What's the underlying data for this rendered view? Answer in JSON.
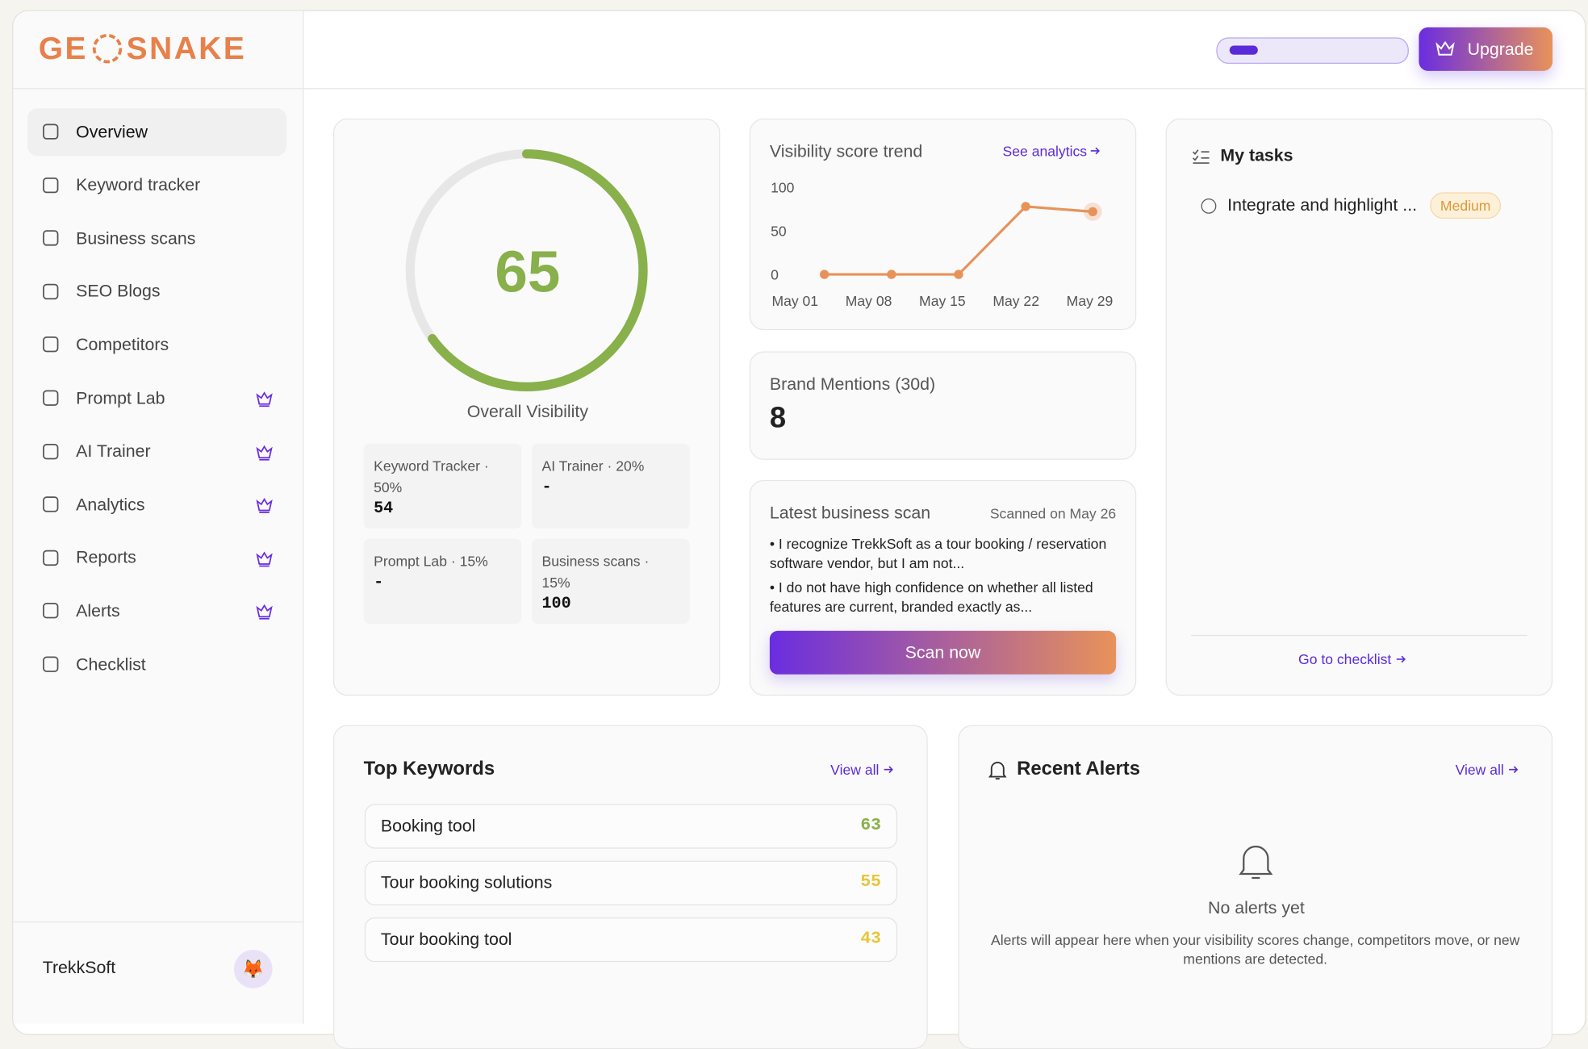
{
  "brand": {
    "logo_left": "GE",
    "logo_right": "SNAKE"
  },
  "header": {
    "upgrade": "Upgrade"
  },
  "sidebar": {
    "nav": [
      {
        "label": "Overview",
        "active": true,
        "premium": false
      },
      {
        "label": "Keyword tracker",
        "premium": false
      },
      {
        "label": "Business scans",
        "premium": false
      },
      {
        "label": "SEO Blogs",
        "premium": false
      },
      {
        "label": "Competitors",
        "premium": false
      },
      {
        "label": "Prompt Lab",
        "premium": true
      },
      {
        "label": "AI Trainer",
        "premium": true
      },
      {
        "label": "Analytics",
        "premium": true
      },
      {
        "label": "Reports",
        "premium": true
      },
      {
        "label": "Alerts",
        "premium": true
      },
      {
        "label": "Checklist",
        "premium": false
      }
    ],
    "account": "TrekkSoft",
    "avatar": "🦊"
  },
  "visibility": {
    "score": 65,
    "range": [
      0,
      100
    ],
    "color": "#88b04b",
    "label": "Overall Visibility",
    "breakdown": [
      {
        "label": "Keyword Tracker · 50%",
        "value": 54
      },
      {
        "label": "AI Trainer · 20%",
        "value": "-"
      },
      {
        "label": "Prompt Lab · 15%",
        "value": "-"
      },
      {
        "label": "Business scans · 15%",
        "value": 100
      }
    ]
  },
  "chart_data": {
    "type": "line",
    "title": "Visibility score trend",
    "link": "See analytics",
    "categories": [
      "May 01",
      "May 08",
      "May 15",
      "May 22",
      "May 29"
    ],
    "values": [
      0,
      0,
      0,
      78,
      72
    ],
    "color": "#e8925a",
    "ylim": [
      0,
      100
    ],
    "yticks": [
      0,
      50,
      100
    ],
    "grid": false
  },
  "mentions": {
    "title": "Brand Mentions (30d)",
    "value": 8
  },
  "scan": {
    "title": "Latest business scan",
    "date": "Scanned on May 26",
    "bullets": [
      "• I recognize TrekkSoft as a tour booking / reservation software vendor, but I am not...",
      "• I do not have high confidence on whether all listed features are current, branded exactly as..."
    ],
    "button": "Scan now"
  },
  "tasks": {
    "title": "My tasks",
    "items": [
      {
        "text": "Integrate and highlight ...",
        "priority": "Medium"
      }
    ],
    "link": "Go to checklist"
  },
  "keywords": {
    "title": "Top Keywords",
    "link": "View all",
    "rows": [
      {
        "name": "Booking tool",
        "score": 63,
        "color": "#88b04b"
      },
      {
        "name": "Tour booking solutions",
        "score": 55,
        "color": "#e8c53a"
      },
      {
        "name": "Tour booking tool",
        "score": 43,
        "color": "#e8c53a"
      }
    ]
  },
  "alerts": {
    "title": "Recent Alerts",
    "link": "View all",
    "empty_title": "No alerts yet",
    "empty_text": "Alerts will appear here when your visibility scores change, competitors move, or new mentions are detected."
  }
}
